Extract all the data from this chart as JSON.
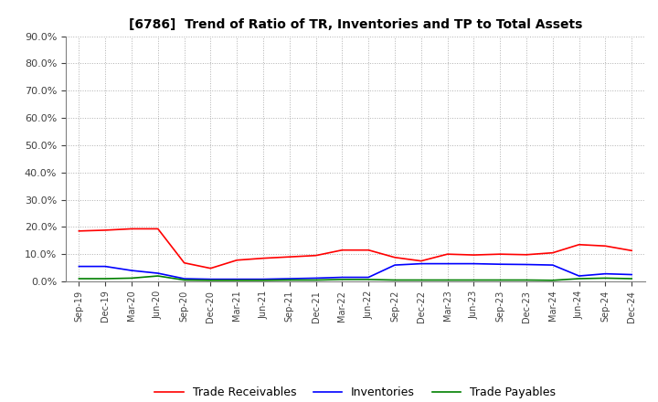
{
  "title": "[6786]  Trend of Ratio of TR, Inventories and TP to Total Assets",
  "x_labels": [
    "Sep-19",
    "Dec-19",
    "Mar-20",
    "Jun-20",
    "Sep-20",
    "Dec-20",
    "Mar-21",
    "Jun-21",
    "Sep-21",
    "Dec-21",
    "Mar-22",
    "Jun-22",
    "Sep-22",
    "Dec-22",
    "Mar-23",
    "Jun-23",
    "Sep-23",
    "Dec-23",
    "Mar-24",
    "Jun-24",
    "Sep-24",
    "Dec-24"
  ],
  "trade_receivables": [
    0.185,
    0.188,
    0.193,
    0.193,
    0.068,
    0.048,
    0.078,
    0.085,
    0.09,
    0.095,
    0.115,
    0.115,
    0.088,
    0.075,
    0.1,
    0.097,
    0.1,
    0.098,
    0.105,
    0.135,
    0.13,
    0.113
  ],
  "inventories": [
    0.055,
    0.055,
    0.04,
    0.03,
    0.01,
    0.008,
    0.008,
    0.008,
    0.01,
    0.012,
    0.015,
    0.015,
    0.06,
    0.065,
    0.065,
    0.065,
    0.063,
    0.062,
    0.06,
    0.02,
    0.028,
    0.025
  ],
  "trade_payables": [
    0.01,
    0.01,
    0.012,
    0.02,
    0.005,
    0.004,
    0.004,
    0.004,
    0.005,
    0.005,
    0.007,
    0.007,
    0.005,
    0.005,
    0.005,
    0.005,
    0.005,
    0.005,
    0.004,
    0.01,
    0.012,
    0.01
  ],
  "tr_color": "#ff0000",
  "inv_color": "#0000ff",
  "tp_color": "#008000",
  "ylim": [
    0.0,
    0.9
  ],
  "yticks": [
    0.0,
    0.1,
    0.2,
    0.3,
    0.4,
    0.5,
    0.6,
    0.7,
    0.8,
    0.9
  ],
  "legend_labels": [
    "Trade Receivables",
    "Inventories",
    "Trade Payables"
  ],
  "background_color": "#ffffff",
  "grid_color": "#b0b0b0"
}
